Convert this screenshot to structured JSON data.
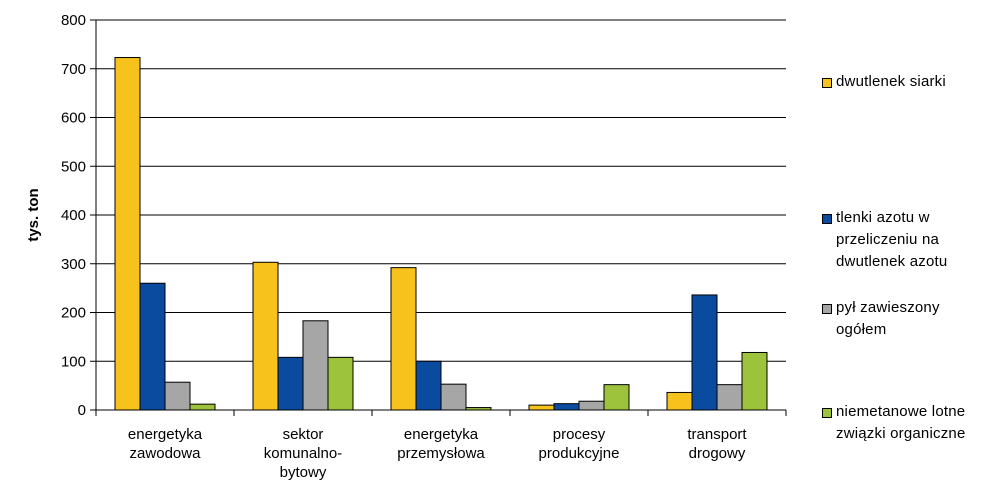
{
  "chart_data": {
    "type": "bar",
    "ylabel": "tys. ton",
    "ylim": [
      0,
      800
    ],
    "yticks": [
      0,
      100,
      200,
      300,
      400,
      500,
      600,
      700,
      800
    ],
    "grid": true,
    "legend_position": "right",
    "categories": [
      [
        "energetyka",
        "zawodowa"
      ],
      [
        "sektor",
        "komunalno-",
        "bytowy"
      ],
      [
        "energetyka",
        "przemysłowa"
      ],
      [
        "procesy",
        "produkcyjne"
      ],
      [
        "transport",
        "drogowy"
      ]
    ],
    "series": [
      {
        "name": "dwutlenek siarki",
        "color": "#F7C21B",
        "values": [
          723,
          303,
          292,
          10,
          36
        ]
      },
      {
        "name": "tlenki azotu w przeliczeniu na dwutlenek azotu",
        "color": "#0A4BA0",
        "values": [
          260,
          108,
          100,
          13,
          236
        ]
      },
      {
        "name": "pył zawieszony ogółem",
        "color": "#A6A6A6",
        "values": [
          57,
          183,
          53,
          18,
          52
        ]
      },
      {
        "name": "niemetanowe lotne związki organiczne",
        "color": "#9DC33C",
        "values": [
          12,
          108,
          5,
          52,
          118
        ]
      }
    ]
  },
  "legend": {
    "items": [
      {
        "label": "dwutlenek siarki",
        "color": "#F7C21B"
      },
      {
        "label": "tlenki azotu w przeliczeniu na dwutlenek azotu",
        "color": "#0A4BA0"
      },
      {
        "label": "pył zawieszony ogółem",
        "color": "#A6A6A6"
      },
      {
        "label": "niemetanowe lotne związki organiczne",
        "color": "#9DC33C"
      }
    ]
  }
}
